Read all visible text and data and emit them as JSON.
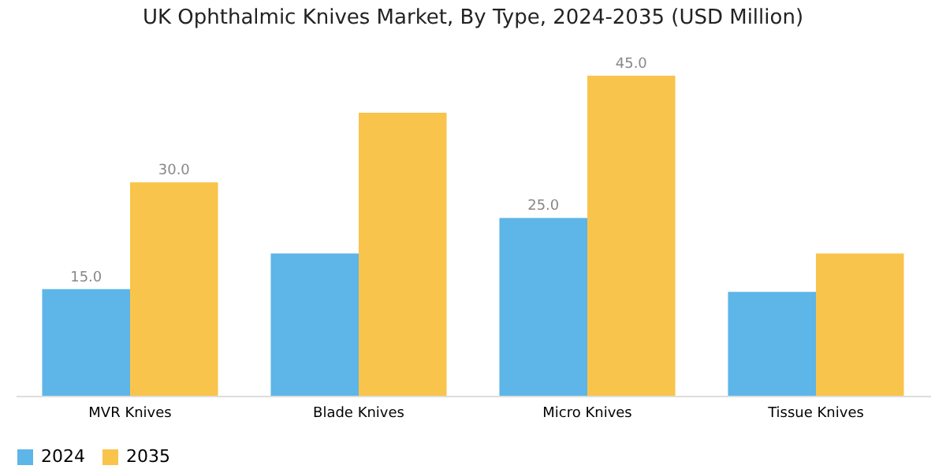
{
  "chart_data": {
    "type": "bar",
    "title": "UK Ophthalmic Knives Market, By Type, 2024-2035 (USD Million)",
    "categories": [
      "MVR Knives",
      "Blade Knives",
      "Micro Knives",
      "Tissue Knives"
    ],
    "series": [
      {
        "name": "2024",
        "color": "#5db5e8",
        "values": [
          15.0,
          20.0,
          25.0,
          14.6
        ],
        "value_labels": [
          "15.0",
          null,
          "25.0",
          null
        ]
      },
      {
        "name": "2035",
        "color": "#f9c44c",
        "values": [
          30.0,
          39.8,
          45.0,
          20.0
        ],
        "value_labels": [
          "30.0",
          null,
          "45.0",
          null
        ]
      }
    ],
    "ylim": [
      0,
      45
    ],
    "grid": false,
    "legend": "bottom",
    "tick_labels": "x"
  }
}
